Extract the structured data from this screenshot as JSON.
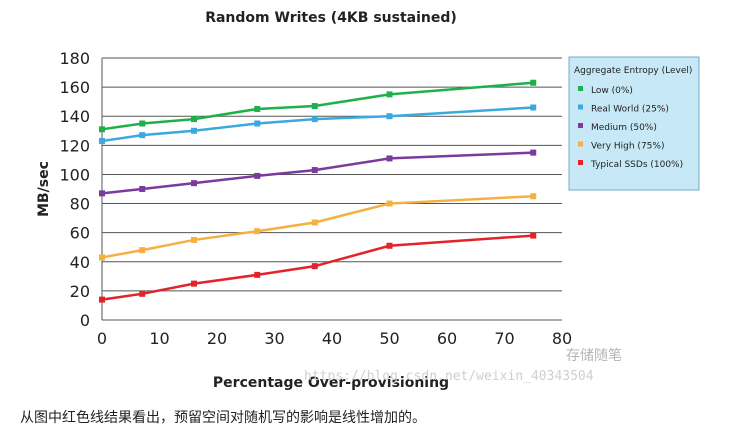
{
  "chart_data": {
    "type": "line",
    "title": "Random Writes (4KB sustained)",
    "xlabel": "Percentage Over-provisioning",
    "ylabel": "MB/sec",
    "xlim": [
      0,
      80
    ],
    "ylim": [
      0,
      180
    ],
    "x_ticks": [
      0,
      10,
      20,
      30,
      40,
      50,
      60,
      70,
      80
    ],
    "y_ticks": [
      0,
      20,
      40,
      60,
      80,
      100,
      120,
      140,
      160,
      180
    ],
    "grid": "horizontal",
    "legend_title": "Aggregate Entropy (Level)",
    "legend_position": "right",
    "x": [
      0,
      7,
      16,
      27,
      37,
      50,
      75
    ],
    "series": [
      {
        "name": "Low (0%)",
        "color": "#1fb04b",
        "values": [
          131,
          135,
          138,
          145,
          147,
          155,
          163
        ]
      },
      {
        "name": "Real World (25%)",
        "color": "#3aa9dc",
        "values": [
          123,
          127,
          130,
          135,
          138,
          140,
          146
        ]
      },
      {
        "name": "Medium (50%)",
        "color": "#7b3a9c",
        "values": [
          87,
          90,
          94,
          99,
          103,
          111,
          115
        ]
      },
      {
        "name": "Very High (75%)",
        "color": "#f5b041",
        "values": [
          43,
          48,
          55,
          61,
          67,
          80,
          85
        ]
      },
      {
        "name": "Typical SSDs (100%)",
        "color": "#e2232a",
        "values": [
          14,
          18,
          25,
          31,
          37,
          51,
          58
        ]
      }
    ]
  },
  "watermark": "https://blog.csdn.net/weixin_40343504",
  "watermark_brand": "存储随笔",
  "caption": "从图中红色线结果看出，预留空间对随机写的影响是线性增加的。"
}
